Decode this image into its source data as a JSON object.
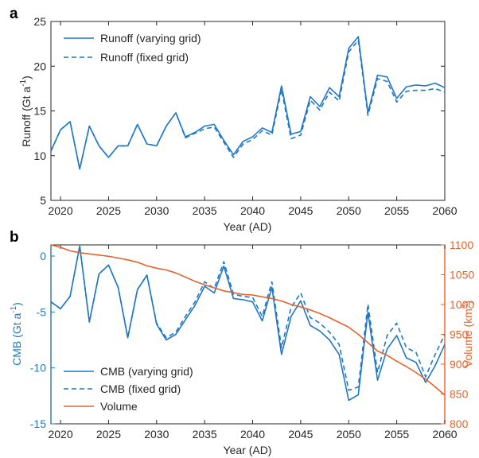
{
  "figure": {
    "panel_a_letter": "a",
    "panel_b_letter": "b"
  },
  "colors": {
    "blue": "#1f77c8",
    "orange": "#e8622a",
    "axis": "#262626"
  },
  "chart_data": [
    {
      "type": "line",
      "panel": "a",
      "xlabel": "Year (AD)",
      "ylabel": "Runoff (Gt a",
      "ylabel_sup": "-1",
      "ylabel_end": ")",
      "xlim": [
        2019,
        2060
      ],
      "ylim": [
        5,
        25
      ],
      "xticks": [
        2020,
        2025,
        2030,
        2035,
        2040,
        2045,
        2050,
        2055,
        2060
      ],
      "yticks": [
        5,
        10,
        15,
        20,
        25
      ],
      "legend_position": "top-left",
      "x": [
        2019,
        2020,
        2021,
        2022,
        2023,
        2024,
        2025,
        2026,
        2027,
        2028,
        2029,
        2030,
        2031,
        2032,
        2033,
        2034,
        2035,
        2036,
        2037,
        2038,
        2039,
        2040,
        2041,
        2042,
        2043,
        2044,
        2045,
        2046,
        2047,
        2048,
        2049,
        2050,
        2051,
        2052,
        2053,
        2054,
        2055,
        2056,
        2057,
        2058,
        2059,
        2060
      ],
      "series": [
        {
          "name": "Runoff (varying grid)",
          "style": "solid",
          "color": "#1f77c8",
          "values": [
            10.5,
            12.9,
            13.8,
            8.5,
            13.3,
            11.1,
            9.8,
            11.1,
            11.1,
            13.5,
            11.3,
            11.1,
            13.3,
            14.8,
            12.1,
            12.6,
            13.3,
            13.5,
            11.7,
            10.1,
            11.6,
            12.1,
            13.1,
            12.6,
            17.8,
            12.4,
            12.7,
            16.6,
            15.5,
            17.6,
            16.6,
            22.0,
            23.3,
            14.8,
            19.0,
            18.8,
            16.4,
            17.7,
            17.9,
            17.8,
            18.1,
            17.6
          ]
        },
        {
          "name": "Runoff (fixed grid)",
          "style": "dashed",
          "color": "#1f77c8",
          "values": [
            10.5,
            12.9,
            13.8,
            8.5,
            13.3,
            11.1,
            9.8,
            11.1,
            11.1,
            13.5,
            11.3,
            11.1,
            13.3,
            14.8,
            12.0,
            12.5,
            13.0,
            13.2,
            11.5,
            9.8,
            11.3,
            11.8,
            12.8,
            12.3,
            17.4,
            11.9,
            12.3,
            16.2,
            15.1,
            17.1,
            16.1,
            21.6,
            22.9,
            14.5,
            18.6,
            18.3,
            16.0,
            17.2,
            17.3,
            17.3,
            17.5,
            17.1
          ]
        }
      ]
    },
    {
      "type": "line",
      "panel": "b",
      "xlabel": "Year (AD)",
      "ylabel_left": "CMB (Gt a",
      "ylabel_left_sup": "-1",
      "ylabel_left_end": ")",
      "ylabel_right": "Volume (km",
      "ylabel_right_sup": "3",
      "ylabel_right_end": ")",
      "xlim": [
        2019,
        2060
      ],
      "ylim_left": [
        -15,
        1
      ],
      "ylim_right": [
        800,
        1100
      ],
      "xticks": [
        2020,
        2025,
        2030,
        2035,
        2040,
        2045,
        2050,
        2055,
        2060
      ],
      "yticks_left": [
        -15,
        -10,
        -5,
        0
      ],
      "yticks_right": [
        800,
        850,
        900,
        950,
        1000,
        1050,
        1100
      ],
      "legend_position": "bottom-left",
      "x": [
        2019,
        2020,
        2021,
        2022,
        2023,
        2024,
        2025,
        2026,
        2027,
        2028,
        2029,
        2030,
        2031,
        2032,
        2033,
        2034,
        2035,
        2036,
        2037,
        2038,
        2039,
        2040,
        2041,
        2042,
        2043,
        2044,
        2045,
        2046,
        2047,
        2048,
        2049,
        2050,
        2051,
        2052,
        2053,
        2054,
        2055,
        2056,
        2057,
        2058,
        2059,
        2060
      ],
      "series": [
        {
          "name": "CMB (varying grid)",
          "style": "solid",
          "color": "#1f77c8",
          "axis": "left",
          "values": [
            -4.1,
            -4.7,
            -3.6,
            0.9,
            -5.9,
            -1.6,
            -0.8,
            -2.8,
            -7.3,
            -3.0,
            -1.7,
            -6.1,
            -7.5,
            -7.0,
            -5.7,
            -4.4,
            -2.7,
            -3.3,
            -0.9,
            -3.8,
            -3.9,
            -4.1,
            -5.8,
            -2.8,
            -8.8,
            -5.4,
            -4.0,
            -6.2,
            -6.7,
            -7.5,
            -8.8,
            -12.9,
            -12.4,
            -5.0,
            -11.1,
            -8.3,
            -7.1,
            -9.1,
            -9.5,
            -11.3,
            -9.8,
            -7.9
          ]
        },
        {
          "name": "CMB (fixed grid)",
          "style": "dashed",
          "color": "#1f77c8",
          "axis": "left",
          "values": [
            -4.1,
            -4.7,
            -3.6,
            0.9,
            -5.9,
            -1.6,
            -0.8,
            -2.8,
            -7.3,
            -3.0,
            -1.7,
            -6.0,
            -7.3,
            -6.8,
            -5.4,
            -4.1,
            -2.3,
            -2.9,
            -0.5,
            -3.4,
            -3.6,
            -3.7,
            -5.4,
            -2.3,
            -8.2,
            -4.6,
            -3.3,
            -5.5,
            -6.0,
            -6.8,
            -7.9,
            -12.0,
            -11.7,
            -4.3,
            -10.4,
            -7.1,
            -6.0,
            -8.2,
            -8.6,
            -10.8,
            -8.8,
            -7.0
          ]
        },
        {
          "name": "Volume",
          "style": "solid",
          "color": "#e8622a",
          "axis": "right",
          "values": [
            1100,
            1096,
            1090,
            1087,
            1085,
            1083,
            1081,
            1078,
            1075,
            1071,
            1065,
            1061,
            1058,
            1053,
            1046,
            1039,
            1033,
            1028,
            1023,
            1020,
            1017,
            1016,
            1013,
            1010,
            1006,
            1000,
            996,
            991,
            985,
            978,
            970,
            962,
            950,
            936,
            922,
            915,
            905,
            896,
            886,
            875,
            862,
            848
          ]
        }
      ]
    }
  ]
}
